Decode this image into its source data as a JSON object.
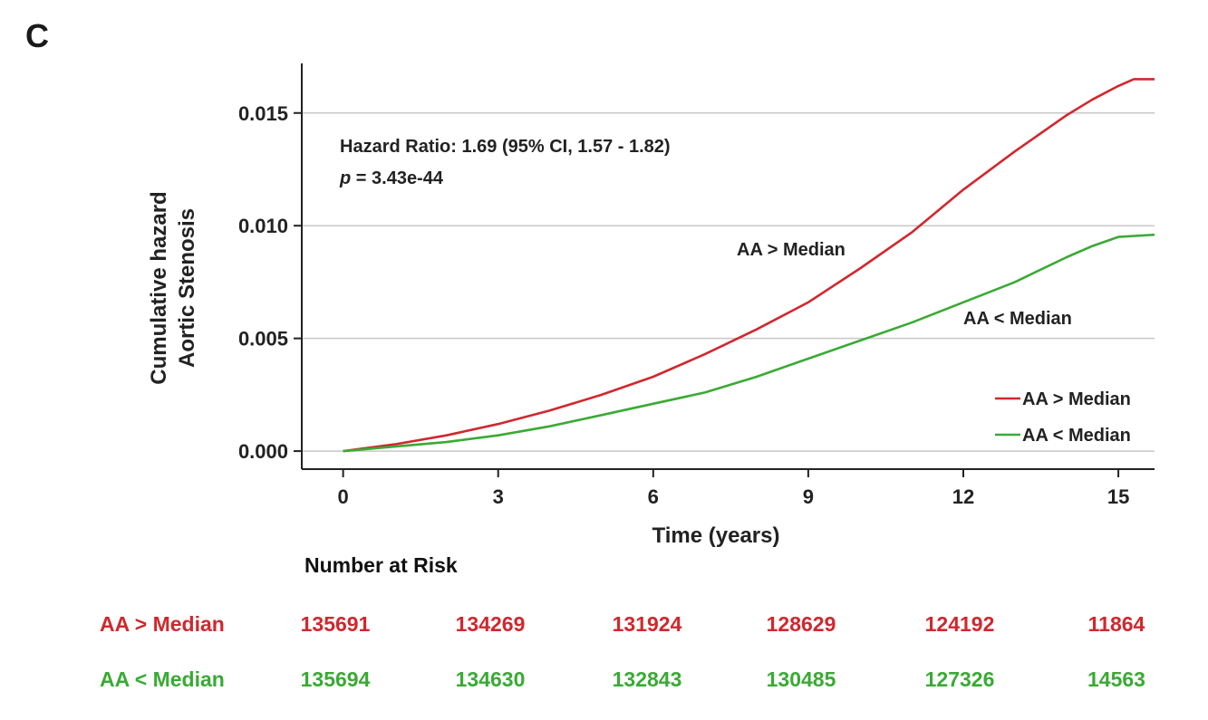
{
  "panel_label": "C",
  "colors": {
    "series_1": "#d0282e",
    "series_2": "#3aaa35",
    "grid": "#c8c8c8",
    "axis": "#222222"
  },
  "annotations": {
    "hazard_ratio": "Hazard Ratio: 1.69 (95% CI, 1.57 - 1.82)",
    "p_symbol": "p",
    "p_value": " = 3.43e-44",
    "label_high": "AA > Median",
    "label_low": "AA < Median"
  },
  "risk_table": {
    "title": "Number at Risk",
    "rows": [
      {
        "label": "AA > Median",
        "values": [
          "135691",
          "134269",
          "131924",
          "128629",
          "124192",
          "11864"
        ]
      },
      {
        "label": "AA < Median",
        "values": [
          "135694",
          "134630",
          "132843",
          "130485",
          "127326",
          "14563"
        ]
      }
    ]
  },
  "chart_data": {
    "type": "line",
    "title": "",
    "xlabel": "Time (years)",
    "ylabel": [
      "Cumulative hazard",
      "Aortic Stenosis"
    ],
    "xlim": [
      -0.8,
      15.7
    ],
    "ylim": [
      -0.0008,
      0.0172
    ],
    "xticks": [
      0,
      3,
      6,
      9,
      12,
      15
    ],
    "xtick_labels": [
      "0",
      "3",
      "6",
      "9",
      "12",
      "15"
    ],
    "yticks": [
      0.0,
      0.005,
      0.01,
      0.015
    ],
    "ytick_labels": [
      "0.000",
      "0.005",
      "0.010",
      "0.015"
    ],
    "grid": "horizontal",
    "legend_position": "lower-right",
    "series": [
      {
        "name": "AA > Median",
        "color": "#d0282e",
        "x": [
          0,
          1,
          2,
          3,
          4,
          5,
          6,
          7,
          8,
          9,
          10,
          11,
          12,
          13,
          14,
          14.5,
          15,
          15.3,
          15.7
        ],
        "y": [
          0.0,
          0.0003,
          0.0007,
          0.0012,
          0.0018,
          0.0025,
          0.0033,
          0.0043,
          0.0054,
          0.0066,
          0.0081,
          0.0097,
          0.0116,
          0.0133,
          0.0149,
          0.0156,
          0.0162,
          0.0165,
          0.0165
        ]
      },
      {
        "name": "AA < Median",
        "color": "#3aaa35",
        "x": [
          0,
          1,
          2,
          3,
          4,
          5,
          6,
          7,
          8,
          9,
          10,
          11,
          12,
          13,
          14,
          14.5,
          15,
          15.7
        ],
        "y": [
          0.0,
          0.0002,
          0.0004,
          0.0007,
          0.0011,
          0.0016,
          0.0021,
          0.0026,
          0.0033,
          0.0041,
          0.0049,
          0.0057,
          0.0066,
          0.0075,
          0.0086,
          0.0091,
          0.0095,
          0.0096
        ]
      }
    ]
  }
}
